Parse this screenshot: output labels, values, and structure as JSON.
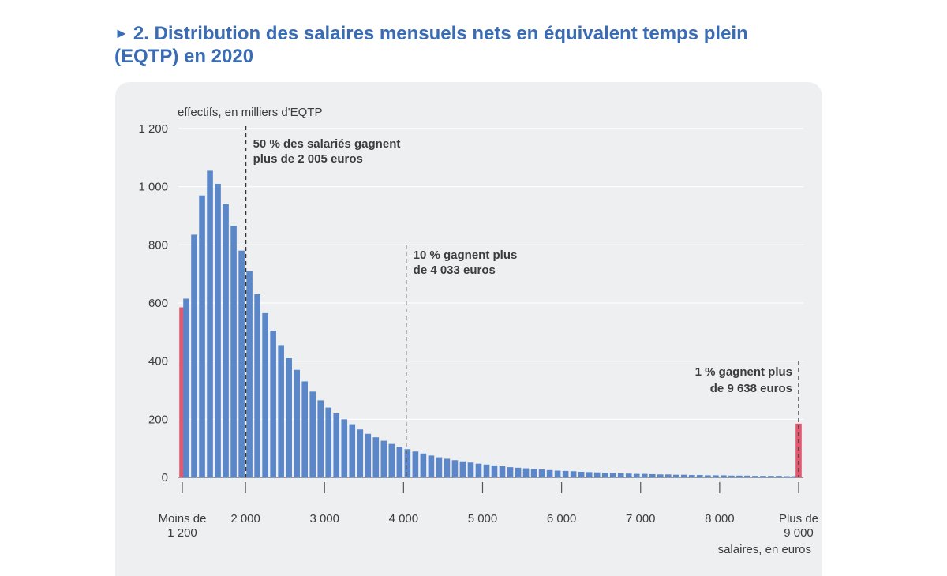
{
  "title": {
    "arrow": "►",
    "line1": "2. Distribution des salaires mensuels nets en équivalent temps plein",
    "line2": "(EQTP) en 2020"
  },
  "colors": {
    "title": "#3a6cb4",
    "bar": "#5b87c9",
    "bar_highlight": "#e2586f",
    "panel": "#eeeff1",
    "grid": "#ffffff",
    "text": "#3c3c3c"
  },
  "chart_data": {
    "type": "bar",
    "ylabel": "effectifs, en milliers d'EQTP",
    "xlabel": "salaires, en euros",
    "ylim": [
      0,
      1200
    ],
    "y_ticks": [
      {
        "value": 0,
        "label": "0"
      },
      {
        "value": 200,
        "label": "200"
      },
      {
        "value": 400,
        "label": "400"
      },
      {
        "value": 600,
        "label": "600"
      },
      {
        "value": 800,
        "label": "800"
      },
      {
        "value": 1000,
        "label": "1 000"
      },
      {
        "value": 1200,
        "label": "1 200"
      }
    ],
    "x_ticks": [
      {
        "value": 1200,
        "line1": "Moins de",
        "line2": "1 200"
      },
      {
        "value": 2000,
        "line1": "2 000",
        "line2": ""
      },
      {
        "value": 3000,
        "line1": "3 000",
        "line2": ""
      },
      {
        "value": 4000,
        "line1": "4 000",
        "line2": ""
      },
      {
        "value": 5000,
        "line1": "5 000",
        "line2": ""
      },
      {
        "value": 6000,
        "line1": "6 000",
        "line2": ""
      },
      {
        "value": 7000,
        "line1": "7 000",
        "line2": ""
      },
      {
        "value": 8000,
        "line1": "8 000",
        "line2": ""
      },
      {
        "value": 9000,
        "line1": "Plus de",
        "line2": "9 000"
      }
    ],
    "bin_width": 100,
    "lower_bin": {
      "label": "Moins de 1 200",
      "value": 585
    },
    "upper_bin": {
      "label": "Plus de 9 000",
      "value": 185
    },
    "bins_start": 1200,
    "values": [
      615,
      835,
      970,
      1055,
      1010,
      940,
      865,
      780,
      710,
      630,
      565,
      505,
      455,
      410,
      370,
      330,
      295,
      265,
      240,
      220,
      200,
      183,
      165,
      150,
      138,
      126,
      115,
      105,
      97,
      89,
      82,
      75,
      69,
      64,
      59,
      55,
      51,
      47,
      44,
      41,
      38,
      35,
      33,
      31,
      29,
      27,
      25,
      23,
      22,
      21,
      19,
      18,
      17,
      16,
      15,
      14,
      13,
      12,
      12,
      11,
      10,
      10,
      9,
      9,
      8,
      8,
      7,
      7,
      7,
      6,
      6,
      6,
      5,
      5,
      5,
      5,
      4,
      4
    ],
    "annotations": [
      {
        "x": 2005,
        "line1": "50 % des salariés gagnent",
        "line2": "plus de 2 005 euros",
        "align": "left"
      },
      {
        "x": 4033,
        "line1": "10 % gagnent plus",
        "line2": "de 4 033 euros",
        "align": "left"
      },
      {
        "x": 9638,
        "line1": "1 % gagnent plus",
        "line2": "de 9 638 euros",
        "align": "right"
      }
    ]
  }
}
